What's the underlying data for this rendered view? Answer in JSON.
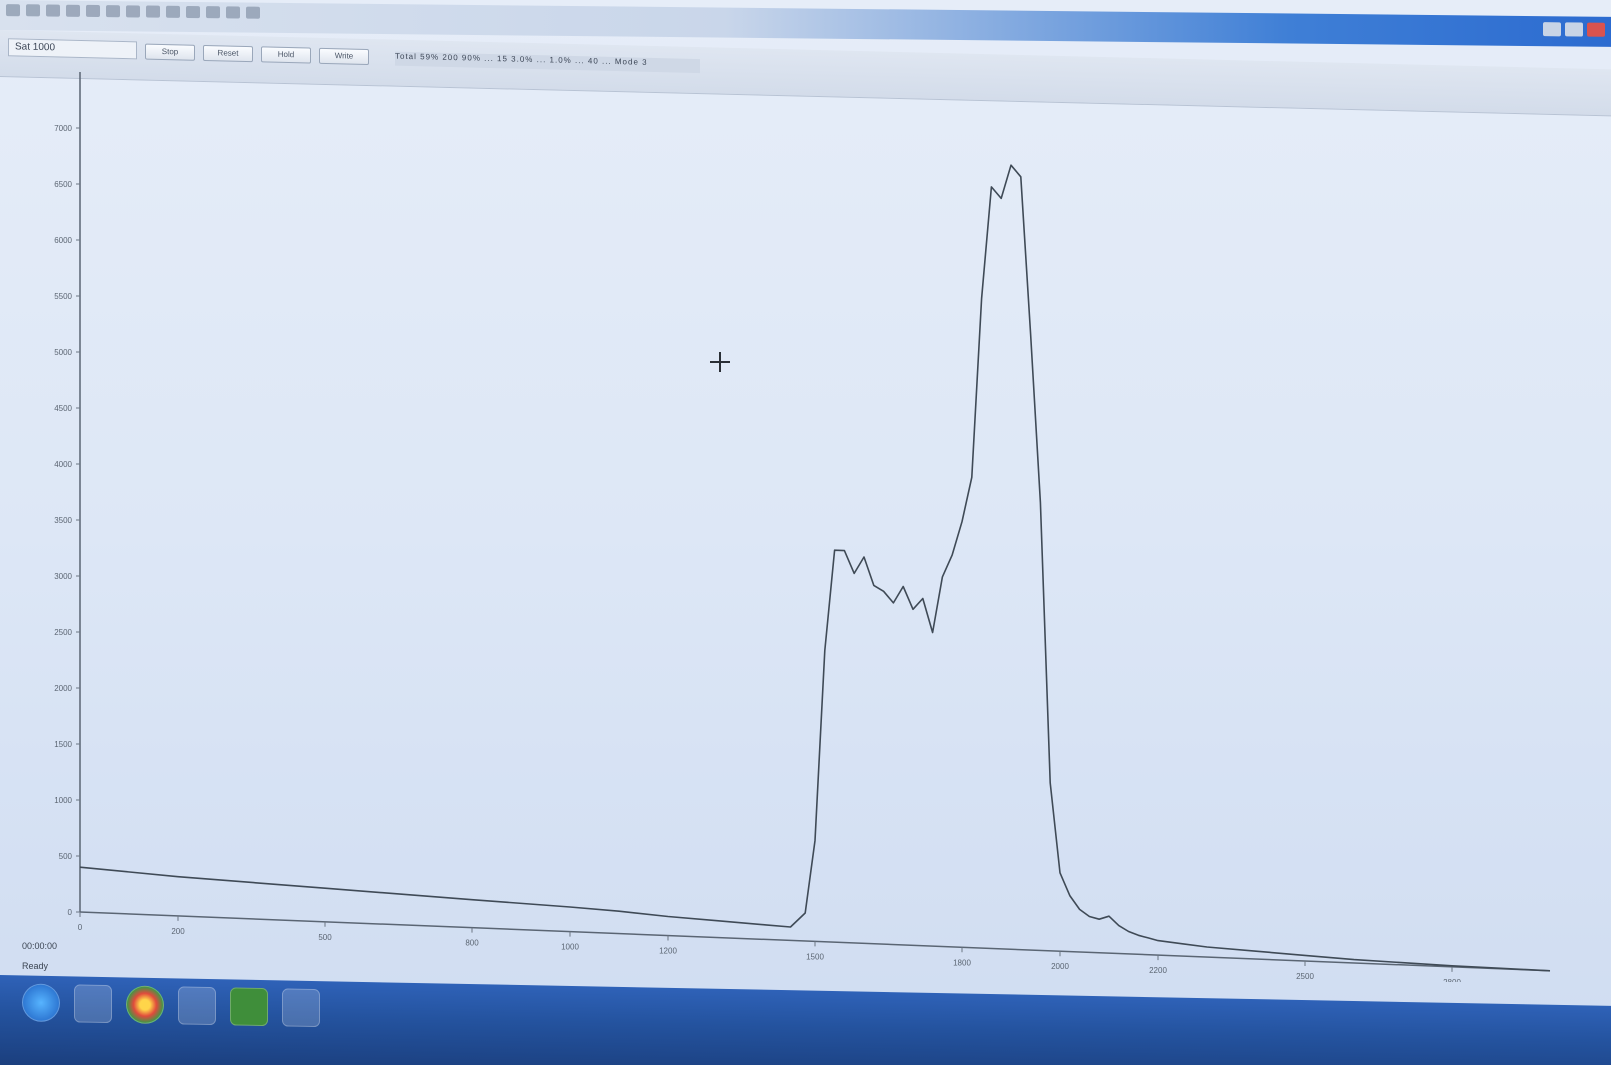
{
  "window": {
    "title_box": "Sat 1000",
    "buttons": [
      "Stop",
      "Reset",
      "Hold",
      "Write"
    ],
    "readout": "Total 59%  200  90%  ... 15 3.0%  ... 1.0%  ... 40  ... Mode 3"
  },
  "chart_data": {
    "type": "line",
    "title": "",
    "xlabel": "",
    "ylabel": "",
    "xlim": [
      0,
      3000
    ],
    "ylim": [
      0,
      7500
    ],
    "x_ticks": [
      0,
      200,
      500,
      800,
      1000,
      1200,
      1500,
      1800,
      2000,
      2200,
      2500,
      2800
    ],
    "y_ticks": [
      7000,
      6500,
      6000,
      5500,
      5000,
      4500,
      4000,
      3500,
      3000,
      2500,
      2000,
      1500,
      1000,
      500,
      0
    ],
    "grid": false,
    "legend": "none",
    "series": [
      {
        "color": "#3f4a56",
        "x": [
          0,
          200,
          500,
          800,
          1000,
          1100,
          1200,
          1300,
          1400,
          1450,
          1480,
          1500,
          1520,
          1540,
          1560,
          1580,
          1600,
          1620,
          1640,
          1660,
          1680,
          1700,
          1720,
          1740,
          1760,
          1780,
          1800,
          1820,
          1840,
          1860,
          1880,
          1900,
          1920,
          1940,
          1960,
          1980,
          2000,
          2020,
          2040,
          2060,
          2080,
          2100,
          2120,
          2140,
          2160,
          2180,
          2200,
          2250,
          2300,
          2400,
          2500,
          2600,
          2700,
          2800,
          2900,
          3000
        ],
        "y": [
          400,
          350,
          300,
          250,
          220,
          200,
          170,
          150,
          130,
          120,
          250,
          900,
          2600,
          3500,
          3500,
          3300,
          3450,
          3200,
          3150,
          3050,
          3200,
          3000,
          3100,
          2800,
          3300,
          3500,
          3800,
          4200,
          5800,
          6800,
          6700,
          7000,
          6900,
          5500,
          4000,
          1500,
          700,
          500,
          380,
          320,
          300,
          330,
          250,
          200,
          170,
          150,
          130,
          110,
          90,
          70,
          50,
          30,
          20,
          10,
          5,
          0
        ]
      }
    ]
  },
  "status": {
    "line1": "00:00:00",
    "line2": "Ready"
  },
  "taskbar": {
    "icons": [
      "windows-start-icon",
      "explorer-icon",
      "chrome-icon",
      "folder-icon",
      "green-app-icon",
      "window-app-icon"
    ]
  }
}
